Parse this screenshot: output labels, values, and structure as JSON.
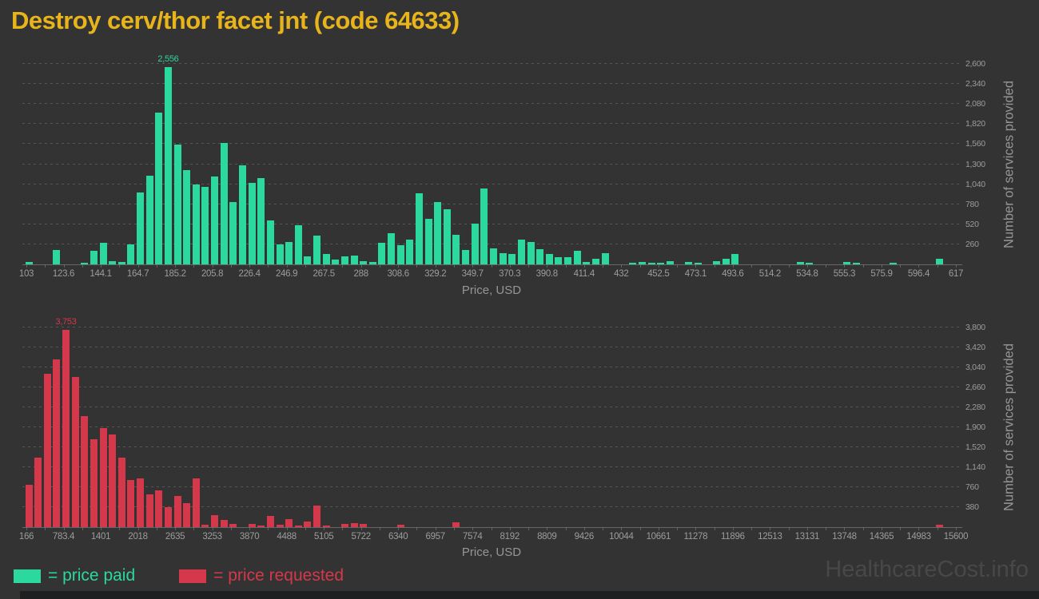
{
  "title": "Destroy cerv/thor facet jnt (code 64633)",
  "watermark": "HealthcareCost.info",
  "legend": {
    "paid_label": "= price paid",
    "requested_label": "= price requested"
  },
  "colors": {
    "background": "#333333",
    "title": "#e8b41c",
    "paid": "#2bd89e",
    "requested": "#d5384b",
    "grid": "#565656",
    "axis_line": "#7a7a7a",
    "tick_text": "#9c9c9c",
    "axis_title_text": "#969696",
    "watermark": "#484848",
    "footer": "#1d1f21"
  },
  "chart_data": [
    {
      "type": "bar",
      "series_name": "price paid",
      "title": "",
      "xlabel": "Price, USD",
      "ylabel": "Number of services provided",
      "peak_label": "2,556",
      "peak_value": 2556,
      "ylim": [
        0,
        2600
      ],
      "x_range": [
        103,
        617
      ],
      "bin_width": 5.14,
      "grid": true,
      "x_tick_labels": [
        "103",
        "123.6",
        "144.1",
        "164.7",
        "185.2",
        "205.8",
        "226.4",
        "246.9",
        "267.5",
        "288",
        "308.6",
        "329.2",
        "349.7",
        "370.3",
        "390.8",
        "411.4",
        "432",
        "452.5",
        "473.1",
        "493.6",
        "514.2",
        "534.8",
        "555.3",
        "575.9",
        "596.4",
        "617"
      ],
      "y_tick_labels": [
        "260",
        "520",
        "780",
        "1,040",
        "1,300",
        "1,560",
        "1,820",
        "2,080",
        "2,340",
        "2,600"
      ],
      "values": [
        35,
        0,
        0,
        190,
        0,
        0,
        25,
        175,
        280,
        45,
        35,
        255,
        930,
        1150,
        1970,
        2556,
        1550,
        1225,
        1040,
        1000,
        1140,
        1575,
        810,
        1280,
        1055,
        1120,
        570,
        255,
        290,
        505,
        105,
        375,
        140,
        60,
        105,
        110,
        45,
        35,
        275,
        400,
        245,
        320,
        920,
        595,
        805,
        715,
        380,
        190,
        530,
        985,
        205,
        150,
        140,
        320,
        295,
        200,
        130,
        90,
        90,
        180,
        35,
        75,
        145,
        0,
        0,
        20,
        30,
        20,
        15,
        40,
        0,
        35,
        20,
        0,
        45,
        75,
        140,
        0,
        0,
        0,
        0,
        0,
        0,
        30,
        20,
        0,
        0,
        0,
        35,
        17,
        0,
        0,
        0,
        20,
        0,
        0,
        0,
        0,
        70,
        0
      ]
    },
    {
      "type": "bar",
      "series_name": "price requested",
      "title": "",
      "xlabel": "Price, USD",
      "ylabel": "Number of services provided",
      "peak_label": "3,753",
      "peak_value": 3753,
      "ylim": [
        0,
        3800
      ],
      "x_range": [
        166,
        15600
      ],
      "bin_width": 154.34,
      "grid": true,
      "x_tick_labels": [
        "166",
        "783.4",
        "1401",
        "2018",
        "2635",
        "3253",
        "3870",
        "4488",
        "5105",
        "5722",
        "6340",
        "6957",
        "7574",
        "8192",
        "8809",
        "9426",
        "10044",
        "10661",
        "11278",
        "11896",
        "12513",
        "13131",
        "13748",
        "14365",
        "14983",
        "15600"
      ],
      "y_tick_labels": [
        "380",
        "760",
        "1,140",
        "1,520",
        "1,900",
        "2,280",
        "2,660",
        "3,040",
        "3,420",
        "3,800"
      ],
      "values": [
        810,
        1330,
        2925,
        3190,
        3753,
        2865,
        2115,
        1670,
        1890,
        1765,
        1330,
        900,
        920,
        625,
        700,
        385,
        590,
        450,
        920,
        40,
        235,
        135,
        65,
        0,
        65,
        25,
        215,
        50,
        150,
        20,
        100,
        415,
        30,
        0,
        60,
        75,
        60,
        0,
        0,
        0,
        40,
        0,
        0,
        0,
        0,
        0,
        85,
        0,
        0,
        0,
        0,
        0,
        0,
        0,
        0,
        0,
        0,
        0,
        0,
        0,
        0,
        0,
        0,
        0,
        0,
        0,
        0,
        0,
        0,
        0,
        0,
        0,
        0,
        0,
        0,
        0,
        0,
        0,
        0,
        0,
        0,
        0,
        0,
        0,
        0,
        0,
        0,
        0,
        0,
        0,
        0,
        0,
        0,
        0,
        0,
        0,
        0,
        0,
        45,
        0
      ]
    }
  ]
}
